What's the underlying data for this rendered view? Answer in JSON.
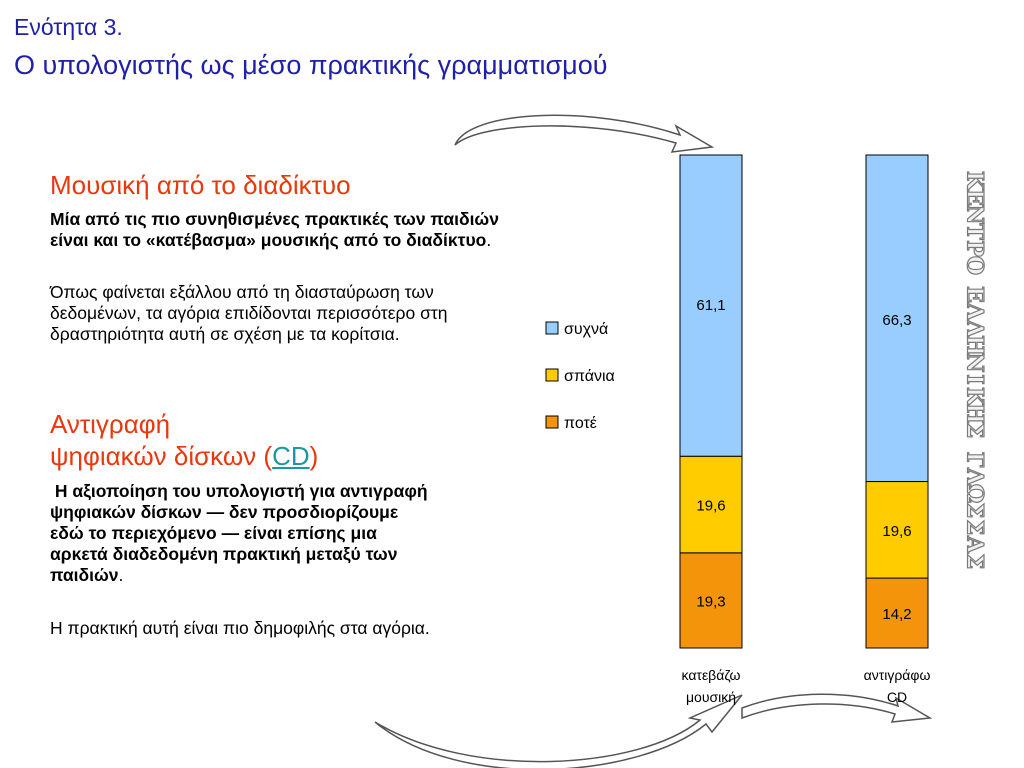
{
  "header": {
    "section": "Ενότητα 3.",
    "title": "Ο υπολογιστής ως μέσο πρακτικής γραμματισμού"
  },
  "music": {
    "heading": "Μουσική από το διαδίκτυο",
    "bold_text": "Μία από τις πιο συνηθισμένες πρακτικές των παιδιών είναι και το «κατέβασμα» μουσικής από το διαδίκτυο",
    "bold_suffix": ".",
    "text": "Όπως φαίνεται εξάλλου από τη διασταύρωση των δεδομένων, τα αγόρια επιδίδονται περισσότερο στη δραστηριότητα αυτή σε σχέση με τα κορίτσια."
  },
  "cd": {
    "heading_line1": "Αντιγραφή",
    "heading_line2": "ψηφιακών δίσκων",
    "heading_paren_open": "(",
    "heading_link": "CD",
    "heading_paren_close": ")",
    "bold_text": "Η αξιοποίηση του υπολογιστή για αντιγραφή ψηφιακών δίσκων — δεν προσδιορίζουμε εδώ το περιεχόμενο — είναι επίσης μια αρκετά διαδεδομένη πρακτική μεταξύ των παιδιών",
    "bold_suffix": ".",
    "text": "Η πρακτική αυτή είναι πιο δημοφιλής στα αγόρια."
  },
  "watermark": {
    "text": "ΚΕΝΤΡΟ ΕΛΛΗΝΙΚΗΣ ΓΛΩΣΣΑΣ"
  },
  "chart_data": {
    "type": "bar",
    "stacked": true,
    "percent_stacked": true,
    "categories": [
      [
        "κατεβάζω",
        "μουσική"
      ],
      [
        "αντιγράφω",
        "CD"
      ]
    ],
    "series": [
      {
        "name": "ποτέ",
        "values": [
          19.3,
          14.2
        ],
        "labels": [
          "19,3",
          "14,2"
        ],
        "color": "#f4940a"
      },
      {
        "name": "σπάνια",
        "values": [
          19.6,
          19.6
        ],
        "labels": [
          "19,6",
          "19,6"
        ],
        "color": "#ffcc00"
      },
      {
        "name": "συχνά",
        "values": [
          61.1,
          66.3
        ],
        "labels": [
          "61,1",
          "66,3"
        ],
        "color": "#99ccff"
      }
    ],
    "legend": {
      "position": "left",
      "order": [
        "συχνά",
        "σπάνια",
        "ποτέ"
      ]
    },
    "grid": false
  }
}
